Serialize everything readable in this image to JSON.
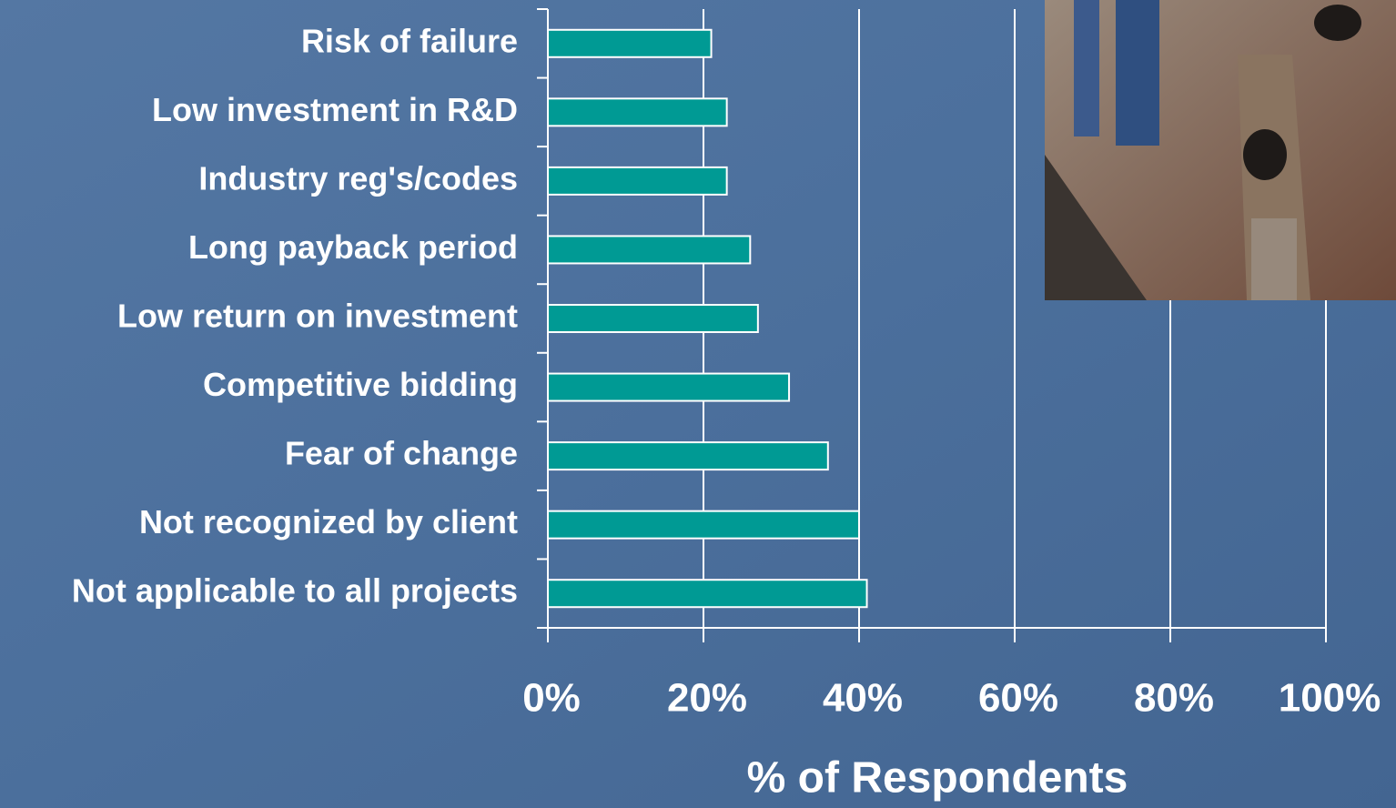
{
  "chart_data": {
    "type": "hbar",
    "categories": [
      "Risk of failure",
      "Low investment in R&D",
      "Industry reg's/codes",
      "Long payback period",
      "Low return on investment",
      "Competitive bidding",
      "Fear of change",
      "Not recognized by client",
      "Not applicable to all projects"
    ],
    "values": [
      21,
      23,
      23,
      26,
      27,
      31,
      36,
      40,
      41
    ],
    "color": "#009a94",
    "x_label": "% of Respondents",
    "xlim": [
      0,
      100
    ],
    "xticks": [
      {
        "value": 0,
        "label": "0%"
      },
      {
        "value": 20,
        "label": "20%"
      },
      {
        "value": 40,
        "label": "40%"
      },
      {
        "value": 60,
        "label": "60%"
      },
      {
        "value": 80,
        "label": "80%"
      },
      {
        "value": 100,
        "label": "100%"
      }
    ],
    "grid": true
  }
}
